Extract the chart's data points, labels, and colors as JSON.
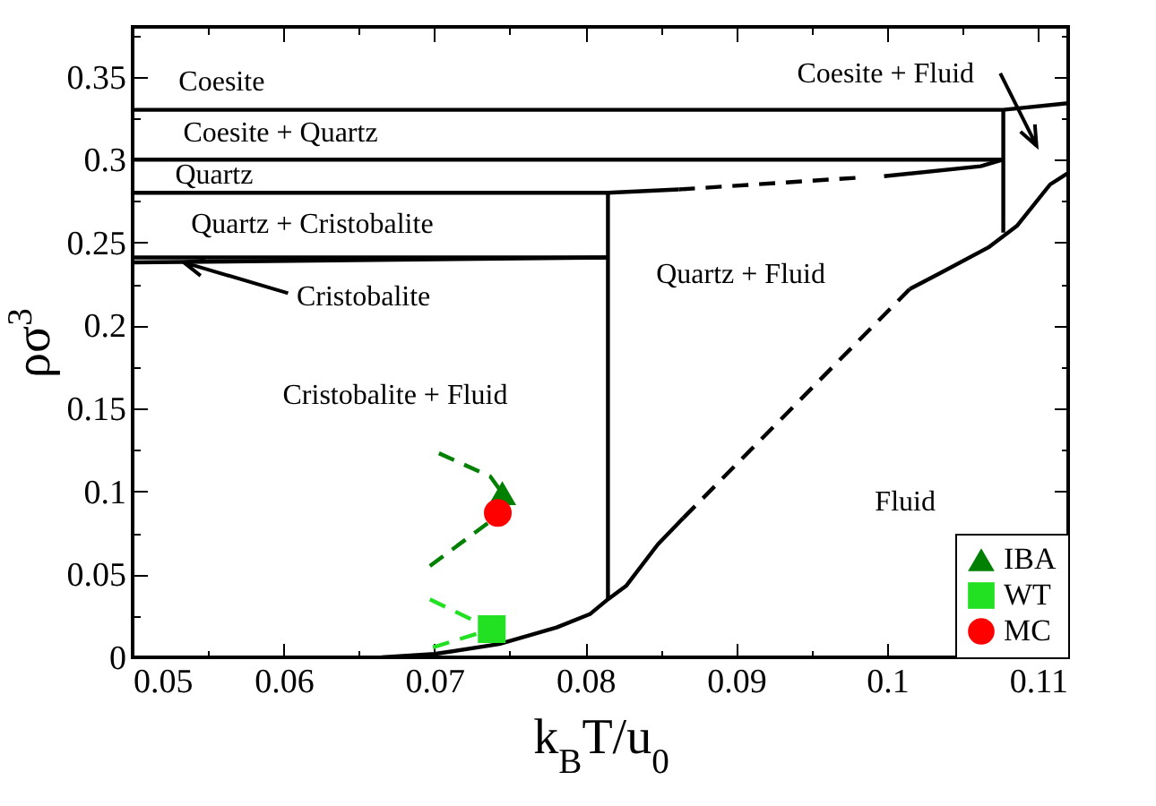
{
  "chart_data": {
    "type": "line",
    "xlabel": "k$_{B}$T/u$_{0}$",
    "ylabel": "ρσ$^{3}$",
    "xlim": [
      0.05,
      0.112
    ],
    "ylim": [
      0,
      0.38
    ],
    "xticks": [
      0.05,
      {
        "value": 0.055,
        "label": null
      },
      0.06,
      {
        "value": 0.065,
        "label": null
      },
      0.07,
      {
        "value": 0.075,
        "label": null
      },
      0.08,
      {
        "value": 0.085,
        "label": null
      },
      0.09,
      {
        "value": 0.095,
        "label": null
      },
      0.1,
      {
        "value": 0.105,
        "label": null
      },
      0.11
    ],
    "yticks": [
      0,
      {
        "value": 0.025,
        "label": null
      },
      0.05,
      {
        "value": 0.075,
        "label": null
      },
      0.1,
      {
        "value": 0.125,
        "label": null
      },
      0.15,
      {
        "value": 0.175,
        "label": null
      },
      0.2,
      {
        "value": 0.225,
        "label": null
      },
      0.25,
      {
        "value": 0.275,
        "label": null
      },
      0.3,
      {
        "value": 0.325,
        "label": null
      },
      0.35,
      {
        "value": 0.375,
        "label": null
      }
    ],
    "grid": false,
    "legend": "bottom right",
    "series": [
      {
        "color": "#000000",
        "x": [
          0.05,
          0.1077,
          0.112
        ],
        "values": [
          0.33,
          0.33,
          0.334
        ]
      },
      {
        "color": "#000000",
        "x": [
          0.05,
          0.1077
        ],
        "values": [
          0.3,
          0.3
        ]
      },
      {
        "color": "#000000",
        "x": [
          0.05,
          0.0815,
          0.0862
        ],
        "values": [
          0.28,
          0.28,
          0.282
        ]
      },
      {
        "color": "#000000",
        "x": [
          0.05,
          0.0815
        ],
        "values": [
          0.241,
          0.241
        ]
      },
      {
        "color": "#000000",
        "x": [
          0.05,
          0.0815
        ],
        "values": [
          0.238,
          0.241
        ]
      },
      {
        "color": "#000000",
        "x": [
          0.0815,
          0.0815
        ],
        "values": [
          0.28,
          0.035
        ]
      },
      {
        "color": "#000000",
        "x": [
          0.1077,
          0.1077
        ],
        "values": [
          0.33,
          0.256
        ]
      },
      {
        "color": "#000000",
        "line_style": "dashed",
        "x": [
          0.0862,
          0.0979
        ],
        "values": [
          0.282,
          0.289
        ]
      },
      {
        "color": "#000000",
        "x": [
          0.0998,
          0.1062,
          0.1077
        ],
        "values": [
          0.29,
          0.296,
          0.3
        ]
      },
      {
        "color": "#000000",
        "x": [
          0.0665,
          0.07,
          0.0743,
          0.0781,
          0.0803,
          0.0815,
          0.0827,
          0.0848,
          0.0865
        ],
        "values": [
          0,
          0.002,
          0.008,
          0.018,
          0.026,
          0.035,
          0.043,
          0.068,
          0.084
        ]
      },
      {
        "color": "#000000",
        "line_style": "dashed",
        "x": [
          0.0865,
          0.1015
        ],
        "values": [
          0.084,
          0.222
        ]
      },
      {
        "color": "#000000",
        "x": [
          0.1015,
          0.1034,
          0.1067,
          0.1086,
          0.1108,
          0.112
        ],
        "values": [
          0.222,
          0.231,
          0.247,
          0.26,
          0.285,
          0.292
        ]
      },
      {
        "color": "#008000",
        "line_style": "dashed",
        "x": [
          0.0703,
          0.0737,
          0.0745,
          0.0737,
          0.0697
        ],
        "values": [
          0.123,
          0.109,
          0.099,
          0.082,
          0.055
        ]
      },
      {
        "color": "#22e022",
        "line_style": "dashed",
        "x": [
          0.0697,
          0.0738,
          0.0699
        ],
        "values": [
          0.035,
          0.017,
          0.006
        ]
      },
      {
        "type": "scatter",
        "name": "IBA",
        "color": "#008000",
        "marker": "triangle",
        "x": [
          0.0745
        ],
        "values": [
          0.099
        ]
      },
      {
        "type": "scatter",
        "name": "WT",
        "color": "#22e022",
        "marker": "square",
        "x": [
          0.0738
        ],
        "values": [
          0.017
        ]
      },
      {
        "type": "scatter",
        "name": "MC",
        "color": "#ff0000",
        "marker": "circle",
        "x": [
          0.0742
        ],
        "values": [
          0.087
        ]
      }
    ],
    "annotations": [
      "Coesite",
      "Coesite + Quartz",
      "Quartz",
      "Quartz + Cristobalite",
      {
        "text": "Cristobalite",
        "x": 0.0534,
        "y": 0.238
      },
      "Quartz + Fluid",
      "Coesite + Fluid",
      "Cristobalite + Fluid",
      "Fluid"
    ]
  }
}
